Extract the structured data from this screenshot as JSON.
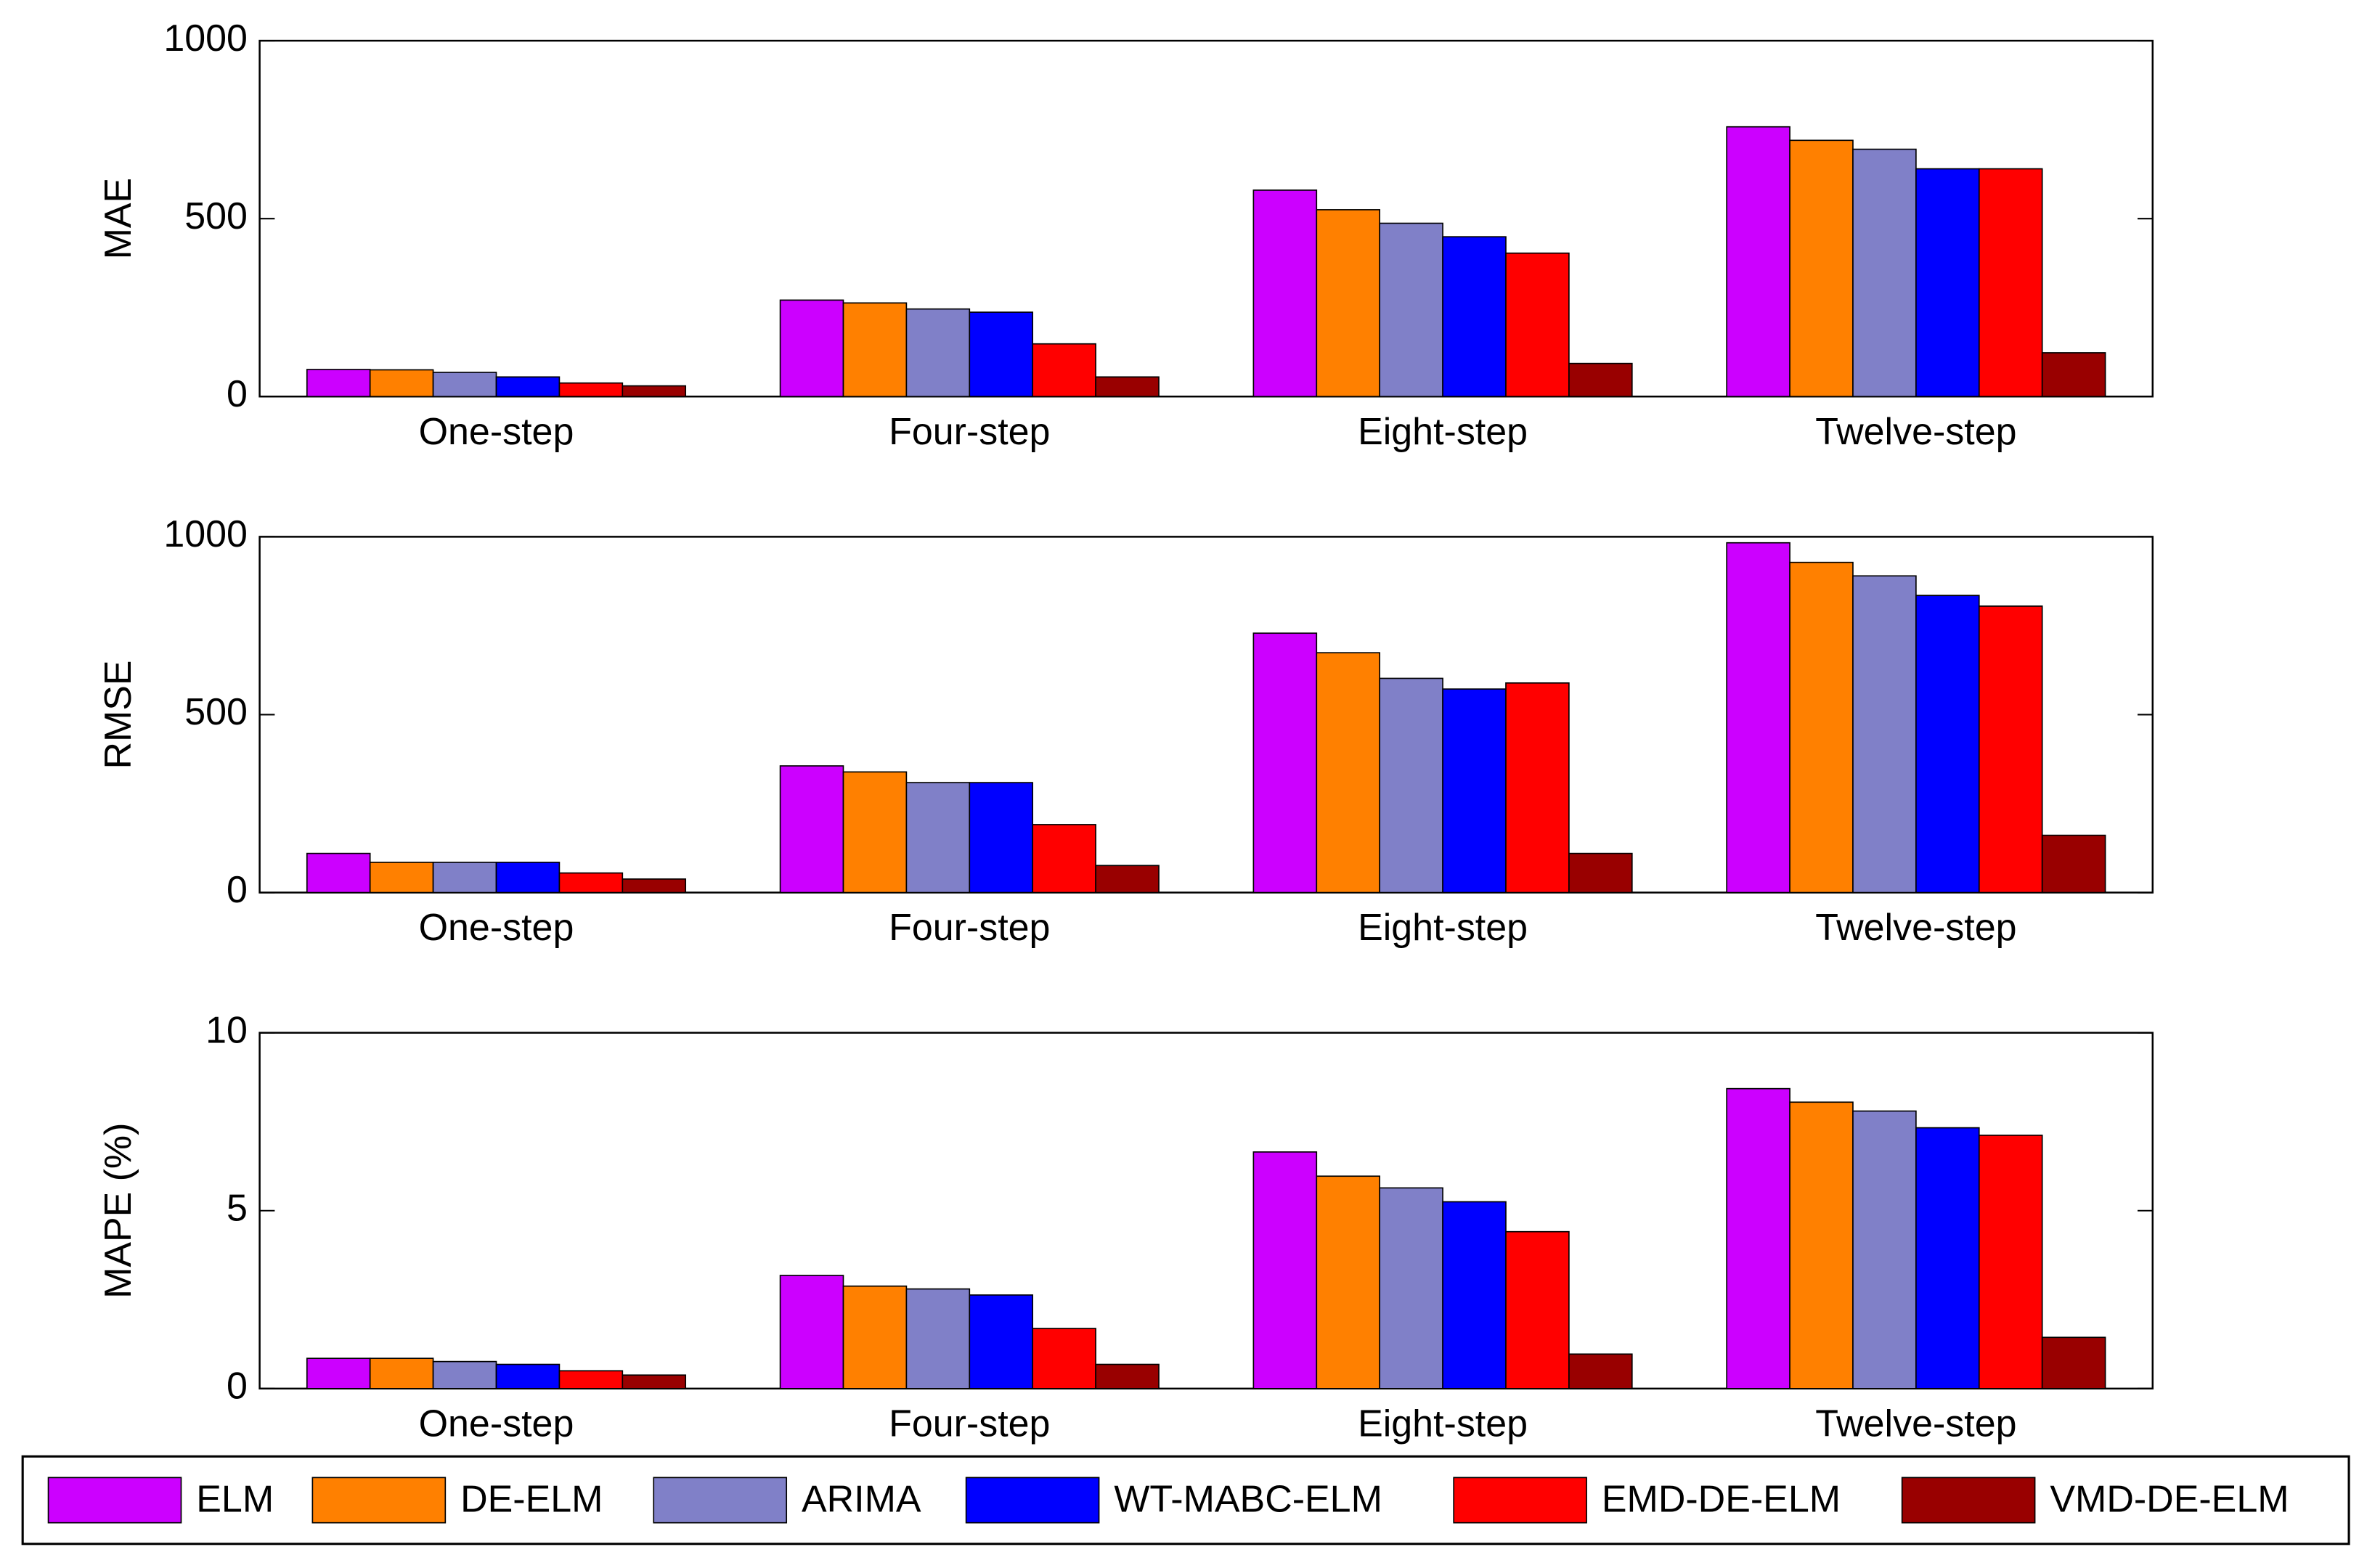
{
  "chart_data": [
    {
      "type": "bar",
      "ylabel": "MAE",
      "categories": [
        "One-step",
        "Four-step",
        "Eight-step",
        "Twelve-step"
      ],
      "ylim": [
        0,
        1000
      ],
      "yticks": [
        0,
        500,
        1000
      ],
      "series": [
        {
          "name": "ELM",
          "color": "#cc00ff",
          "values": [
            76,
            271,
            580,
            758
          ]
        },
        {
          "name": "DE-ELM",
          "color": "#ff8000",
          "values": [
            75,
            263,
            525,
            720
          ]
        },
        {
          "name": "ARIMA",
          "color": "#8080c8",
          "values": [
            68,
            246,
            487,
            695
          ]
        },
        {
          "name": "WT-MABC-ELM",
          "color": "#0000ff",
          "values": [
            55,
            237,
            449,
            640
          ]
        },
        {
          "name": "EMD-DE-ELM",
          "color": "#ff0000",
          "values": [
            38,
            148,
            403,
            640
          ]
        },
        {
          "name": "VMD-DE-ELM",
          "color": "#990000",
          "values": [
            30,
            55,
            93,
            123
          ]
        }
      ]
    },
    {
      "type": "bar",
      "ylabel": "RMSE",
      "categories": [
        "One-step",
        "Four-step",
        "Eight-step",
        "Twelve-step"
      ],
      "ylim": [
        0,
        1000
      ],
      "yticks": [
        0,
        500,
        1000
      ],
      "series": [
        {
          "color": "#cc00ff",
          "values": [
            110,
            356,
            729,
            983
          ]
        },
        {
          "color": "#ff8000",
          "values": [
            85,
            339,
            674,
            928
          ]
        },
        {
          "color": "#8080c8",
          "values": [
            85,
            309,
            602,
            890
          ]
        },
        {
          "color": "#0000ff",
          "values": [
            85,
            309,
            572,
            835
          ]
        },
        {
          "color": "#ff0000",
          "values": [
            55,
            191,
            589,
            805
          ]
        },
        {
          "color": "#990000",
          "values": [
            38,
            76,
            110,
            161
          ]
        }
      ]
    },
    {
      "type": "bar",
      "ylabel": "MAPE (%)",
      "categories": [
        "One-step",
        "Four-step",
        "Eight-step",
        "Twelve-step"
      ],
      "ylim": [
        0,
        10
      ],
      "yticks": [
        0,
        5,
        10
      ],
      "series": [
        {
          "color": "#cc00ff",
          "values": [
            0.85,
            3.18,
            6.65,
            8.43
          ]
        },
        {
          "color": "#ff8000",
          "values": [
            0.85,
            2.88,
            5.97,
            8.05
          ]
        },
        {
          "color": "#8080c8",
          "values": [
            0.76,
            2.8,
            5.64,
            7.8
          ]
        },
        {
          "color": "#0000ff",
          "values": [
            0.68,
            2.63,
            5.25,
            7.33
          ]
        },
        {
          "color": "#ff0000",
          "values": [
            0.5,
            1.69,
            4.41,
            7.12
          ]
        },
        {
          "color": "#990000",
          "values": [
            0.38,
            0.68,
            0.97,
            1.44
          ]
        }
      ]
    }
  ]
}
